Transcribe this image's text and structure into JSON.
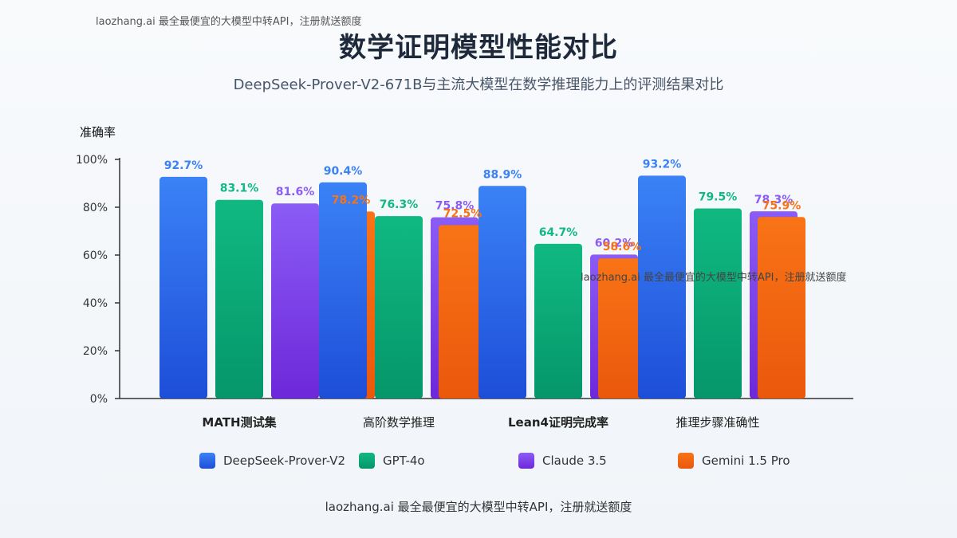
{
  "watermark_top": "laozhang.ai 最全最便宜的大模型中转API，注册就送额度",
  "watermark_mid": "laozhang.ai 最全最便宜的大模型中转API，注册就送额度",
  "footer": "laozhang.ai 最全最便宜的大模型中转API，注册就送额度",
  "colors": {
    "DeepSeek-Prover-V2": [
      "#3b82f6",
      "#1d4ed8"
    ],
    "GPT-4o": [
      "#10b981",
      "#059669"
    ],
    "Claude 3.5": [
      "#8b5cf6",
      "#6d28d9"
    ],
    "Gemini 1.5 Pro": [
      "#f97316",
      "#ea580c"
    ]
  },
  "chart_data": {
    "type": "bar",
    "title": "数学证明模型性能对比",
    "subtitle": "DeepSeek-Prover-V2-671B与主流大模型在数学推理能力上的评测结果对比",
    "ylabel": "准确率",
    "xlabel": "",
    "ylim": [
      0,
      100
    ],
    "yticks": [
      "0%",
      "20%",
      "40%",
      "60%",
      "80%",
      "100%"
    ],
    "categories": [
      "MATH测试集",
      "高阶数学推理",
      "Lean4证明完成率",
      "推理步骤准确性"
    ],
    "series": [
      {
        "name": "DeepSeek-Prover-V2",
        "values": [
          92.7,
          90.4,
          88.9,
          93.2
        ],
        "labels": [
          "92.7%",
          "90.4%",
          "88.9%",
          "93.2%"
        ]
      },
      {
        "name": "GPT-4o",
        "values": [
          83.1,
          76.3,
          64.7,
          79.5
        ],
        "labels": [
          "83.1%",
          "76.3%",
          "64.7%",
          "79.5%"
        ]
      },
      {
        "name": "Claude 3.5",
        "values": [
          81.6,
          75.8,
          60.2,
          78.3
        ],
        "labels": [
          "81.6%",
          "75.8%",
          "60.2%",
          "78.3%"
        ]
      },
      {
        "name": "Gemini 1.5 Pro",
        "values": [
          78.2,
          72.5,
          58.6,
          75.9
        ],
        "labels": [
          "78.2%",
          "72.5%",
          "58.6%",
          "75.9%"
        ]
      }
    ],
    "legend": [
      "DeepSeek-Prover-V2",
      "GPT-4o",
      "Claude 3.5",
      "Gemini 1.5 Pro"
    ],
    "grid": false,
    "legend_position": "bottom"
  }
}
